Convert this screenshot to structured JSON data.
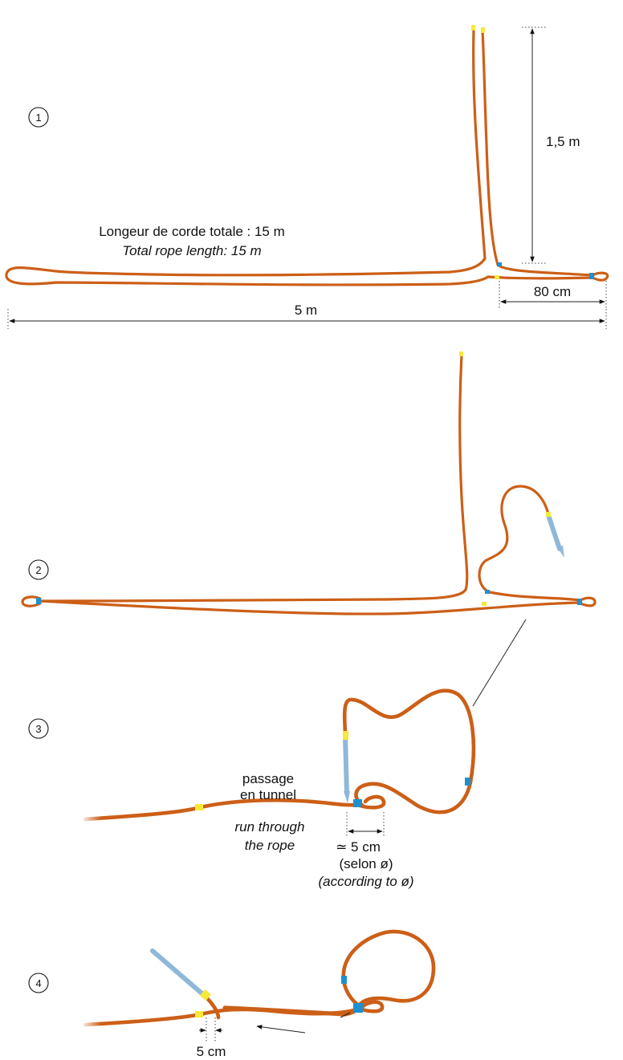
{
  "steps": [
    "1",
    "2",
    "3",
    "4"
  ],
  "step1": {
    "total_length_fr": "Longeur de corde totale : 15 m",
    "total_length_en": "Total rope length: 15 m",
    "height": "1,5 m",
    "loop_width": "80 cm",
    "width": "5 m"
  },
  "step3": {
    "passage_fr_1": "passage",
    "passage_fr_2": "en tunnel",
    "run_en_1": "run through",
    "run_en_2": "the rope",
    "gap": "≃ 5 cm",
    "note_fr": "(selon ø)",
    "note_en": "(according to ø)"
  },
  "step4": {
    "gap": "5 cm"
  },
  "colors": {
    "rope": "#cc5f17",
    "marker_yellow": "#f7e83a",
    "marker_blue": "#1e90d0",
    "needle": "#8fb8d8"
  }
}
